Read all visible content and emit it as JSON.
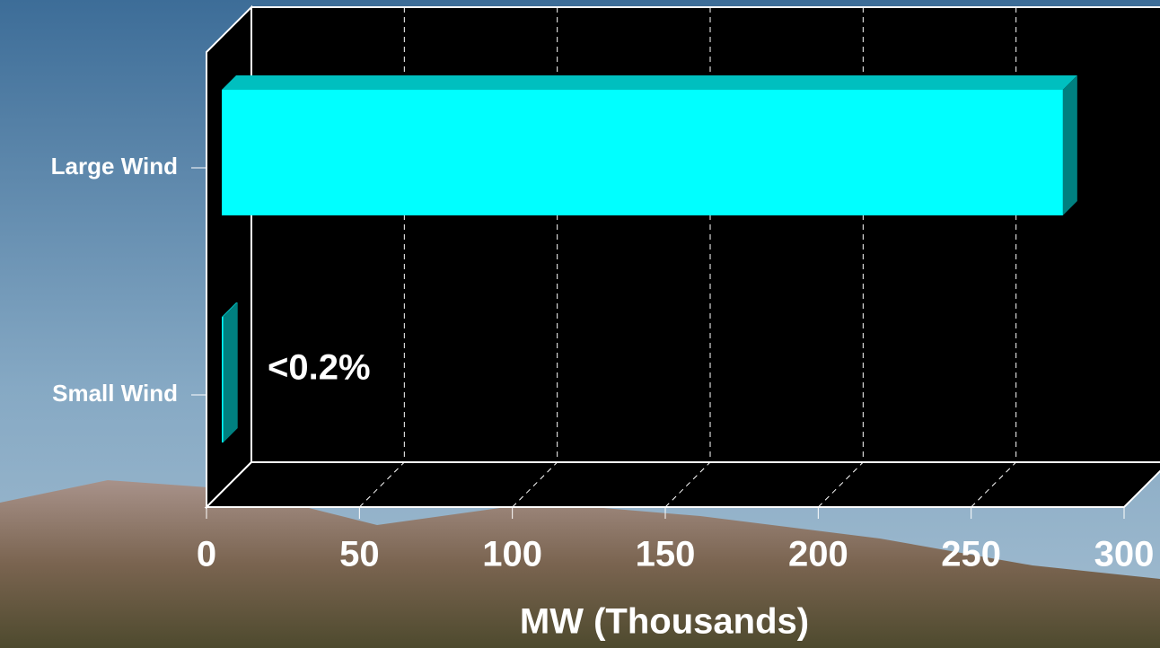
{
  "chart_data": {
    "type": "bar3d_horizontal",
    "categories": [
      "Large Wind",
      "Small Wind"
    ],
    "values": [
      275,
      0.5
    ],
    "color": "#00ffff",
    "annotation": "<0.2%",
    "x_label": "MW (Thousands)",
    "xlim": [
      0,
      300
    ],
    "xticks": [
      0,
      50,
      100,
      150,
      200,
      250,
      300
    ],
    "grid": true
  }
}
